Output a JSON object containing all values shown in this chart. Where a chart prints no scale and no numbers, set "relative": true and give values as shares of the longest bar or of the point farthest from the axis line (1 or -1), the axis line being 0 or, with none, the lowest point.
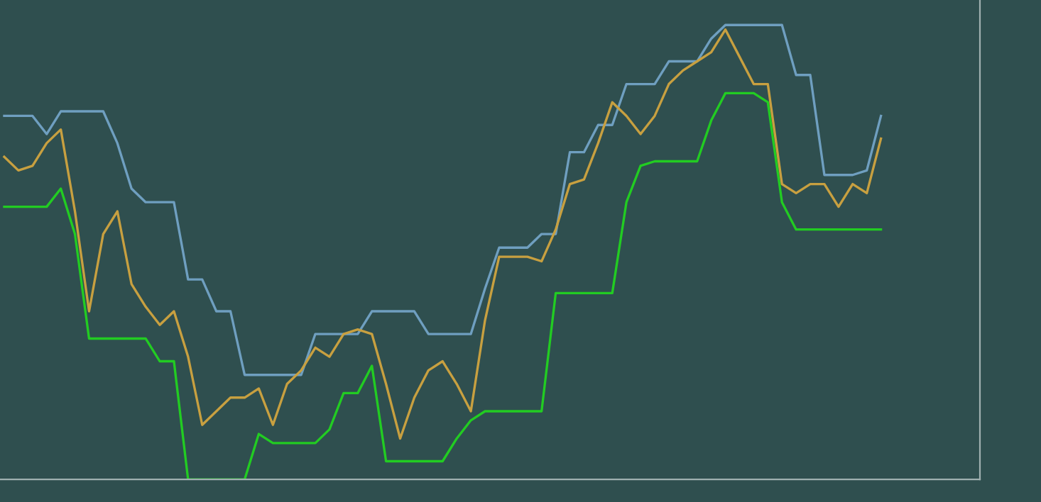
{
  "chart_data": {
    "type": "line",
    "relative": true,
    "grid": false,
    "legend": false,
    "marker": "none",
    "categories": [
      null,
      null,
      null,
      null,
      null,
      null,
      null,
      null,
      null,
      null,
      null,
      null,
      null,
      null,
      null,
      null,
      null,
      null,
      null,
      null,
      null,
      null,
      null,
      null,
      null,
      null,
      null,
      null,
      null,
      null,
      null,
      null,
      null,
      null,
      null,
      null,
      null,
      null,
      null,
      null,
      null,
      null,
      null,
      null,
      null,
      null,
      null,
      null,
      null,
      null,
      null,
      null,
      null,
      null,
      null,
      null,
      null,
      null,
      null,
      null,
      null,
      null,
      null
    ],
    "series": [
      {
        "color": "#6f9fc0",
        "values": [
          0.8,
          0.8,
          0.8,
          0.76,
          0.81,
          0.81,
          0.81,
          0.81,
          0.74,
          0.64,
          0.61,
          0.61,
          0.61,
          0.44,
          0.44,
          0.37,
          0.37,
          0.23,
          0.23,
          0.23,
          0.23,
          0.23,
          0.32,
          0.32,
          0.32,
          0.32,
          0.37,
          0.37,
          0.37,
          0.37,
          0.32,
          0.32,
          0.32,
          0.32,
          0.42,
          0.51,
          0.51,
          0.51,
          0.54,
          0.54,
          0.72,
          0.72,
          0.78,
          0.78,
          0.87,
          0.87,
          0.87,
          0.92,
          0.92,
          0.92,
          0.97,
          1.0,
          1.0,
          1.0,
          1.0,
          1.0,
          0.89,
          0.89,
          0.67,
          0.67,
          0.67,
          0.68,
          0.8
        ]
      },
      {
        "color": "#22cc22",
        "values": [
          0.6,
          0.6,
          0.6,
          0.6,
          0.64,
          0.54,
          0.31,
          0.31,
          0.31,
          0.31,
          0.31,
          0.26,
          0.26,
          0,
          0,
          0,
          0,
          0,
          0.1,
          0.08,
          0.08,
          0.08,
          0.08,
          0.11,
          0.19,
          0.19,
          0.25,
          0.04,
          0.04,
          0.04,
          0.04,
          0.04,
          0.09,
          0.13,
          0.15,
          0.15,
          0.15,
          0.15,
          0.15,
          0.41,
          0.41,
          0.41,
          0.41,
          0.41,
          0.61,
          0.69,
          0.7,
          0.7,
          0.7,
          0.7,
          0.79,
          0.85,
          0.85,
          0.85,
          0.83,
          0.61,
          0.55,
          0.55,
          0.55,
          0.55,
          0.55,
          0.55,
          0.55
        ]
      },
      {
        "color": "#c8a040",
        "values": [
          0.71,
          0.68,
          0.69,
          0.74,
          0.77,
          0.59,
          0.37,
          0.54,
          0.59,
          0.43,
          0.38,
          0.34,
          0.37,
          0.27,
          0.12,
          0.15,
          0.18,
          0.18,
          0.2,
          0.12,
          0.21,
          0.24,
          0.29,
          0.27,
          0.32,
          0.33,
          0.32,
          0.21,
          0.09,
          0.18,
          0.24,
          0.26,
          0.21,
          0.15,
          0.35,
          0.49,
          0.49,
          0.49,
          0.48,
          0.55,
          0.65,
          0.66,
          0.74,
          0.83,
          0.8,
          0.76,
          0.8,
          0.87,
          0.9,
          0.92,
          0.94,
          0.99,
          0.93,
          0.87,
          0.87,
          0.65,
          0.63,
          0.65,
          0.65,
          0.6,
          0.65,
          0.63,
          0.75
        ]
      }
    ]
  }
}
